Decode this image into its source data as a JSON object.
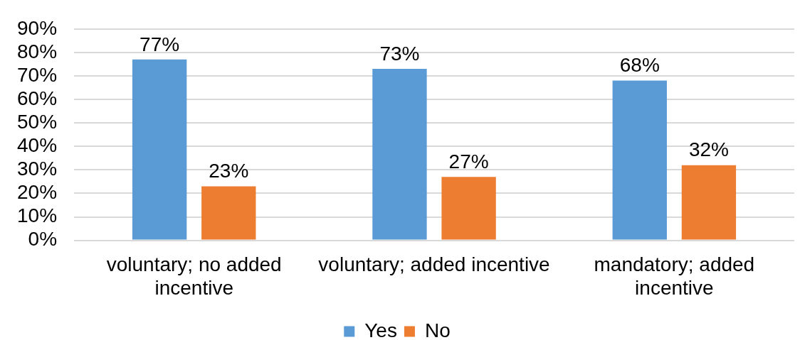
{
  "chart_data": {
    "type": "bar",
    "categories": [
      "voluntary; no added incentive",
      "voluntary; added incentive",
      "mandatory; added incentive"
    ],
    "series": [
      {
        "name": "Yes",
        "color": "#5b9bd5",
        "values": [
          77,
          73,
          68
        ],
        "value_labels": [
          "77%",
          "73%",
          "68%"
        ]
      },
      {
        "name": "No",
        "color": "#ed7d31",
        "values": [
          23,
          27,
          32
        ],
        "value_labels": [
          "23%",
          "27%",
          "32%"
        ]
      }
    ],
    "ylim": [
      0,
      90
    ],
    "yticks": [
      {
        "value": 0,
        "label": "0%"
      },
      {
        "value": 10,
        "label": "10%"
      },
      {
        "value": 20,
        "label": "20%"
      },
      {
        "value": 30,
        "label": "30%"
      },
      {
        "value": 40,
        "label": "40%"
      },
      {
        "value": 50,
        "label": "50%"
      },
      {
        "value": 60,
        "label": "60%"
      },
      {
        "value": 70,
        "label": "70%"
      },
      {
        "value": 80,
        "label": "80%"
      },
      {
        "value": 90,
        "label": "90%"
      }
    ],
    "grid": "y",
    "legend": "bottom"
  }
}
